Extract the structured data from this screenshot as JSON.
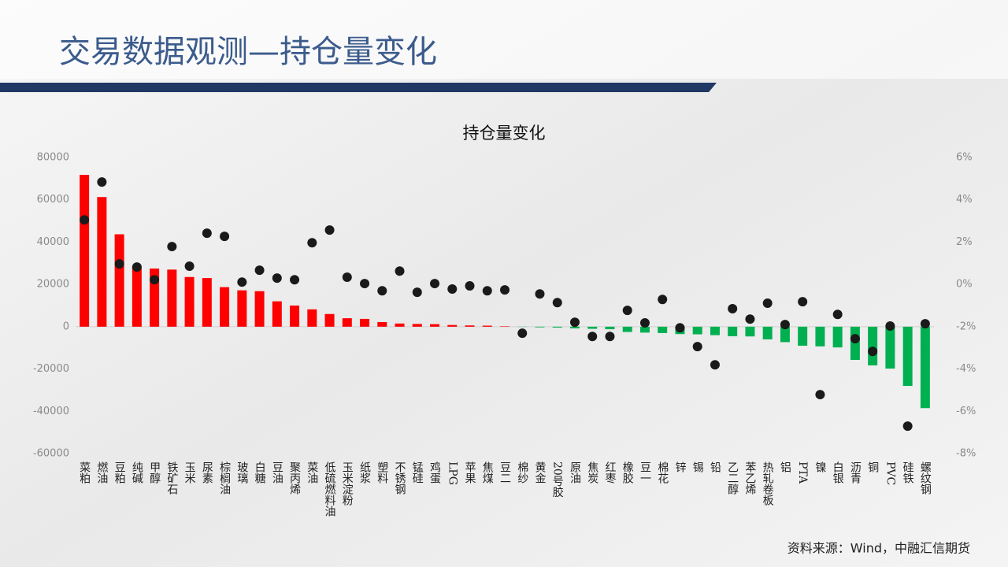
{
  "header": {
    "title": "交易数据观测—持仓量变化"
  },
  "chart_data": {
    "type": "combo",
    "title": "持仓量变化",
    "categories": [
      "菜粕",
      "燃油",
      "豆粕",
      "纯碱",
      "甲醇",
      "铁矿石",
      "玉米",
      "尿素",
      "棕榈油",
      "玻璃",
      "白糖",
      "豆油",
      "聚丙烯",
      "菜油",
      "低硫燃料油",
      "玉米淀粉",
      "纸浆",
      "塑料",
      "不锈钢",
      "锰硅",
      "鸡蛋",
      "LPG",
      "苹果",
      "焦煤",
      "豆二",
      "棉纱",
      "黄金",
      "20号胶",
      "原油",
      "焦炭",
      "红枣",
      "橡胶",
      "豆一",
      "棉花",
      "锌",
      "锡",
      "铅",
      "乙二醇",
      "苯乙烯",
      "热轧卷板",
      "铝",
      "PTA",
      "镍",
      "白银",
      "沥青",
      "铜",
      "PVC",
      "硅铁",
      "螺纹钢"
    ],
    "series": [
      {
        "type": "bar",
        "positive_color": "#ff0000",
        "negative_color": "#00b050",
        "values": [
          71800,
          61300,
          43700,
          28500,
          27500,
          27000,
          23500,
          23000,
          18700,
          17200,
          16800,
          12000,
          10000,
          8200,
          6000,
          4000,
          3700,
          2200,
          1500,
          1300,
          1200,
          800,
          600,
          500,
          200,
          -100,
          -300,
          -400,
          -800,
          -1000,
          -1200,
          -2500,
          -2800,
          -3000,
          -3500,
          -3600,
          -4000,
          -4500,
          -4600,
          -6000,
          -7300,
          -9000,
          -9300,
          -9800,
          -15700,
          -18300,
          -19800,
          -28000,
          -38500
        ]
      },
      {
        "type": "scatter",
        "axis": "y2",
        "color": "#1a1a1a",
        "values": [
          3.05,
          4.84,
          0.97,
          0.82,
          0.22,
          1.79,
          0.86,
          2.42,
          2.27,
          0.11,
          0.67,
          0.3,
          0.22,
          1.97,
          2.57,
          0.34,
          0.04,
          -0.3,
          0.63,
          -0.37,
          0.04,
          -0.22,
          -0.07,
          -0.3,
          -0.26,
          -2.31,
          -0.45,
          -0.86,
          -1.79,
          -2.46,
          -2.46,
          -1.23,
          -1.82,
          -0.71,
          -2.05,
          -2.94,
          -3.8,
          -1.15,
          -1.64,
          -0.89,
          -1.9,
          -0.82,
          -5.21,
          -1.42,
          -2.57,
          -3.17,
          -1.97,
          -6.7,
          -1.86
        ]
      }
    ],
    "ylim": [
      -60000,
      80000
    ],
    "yticks": [
      -60000,
      -40000,
      -20000,
      0,
      20000,
      40000,
      60000,
      80000
    ],
    "y2lim": [
      -8,
      6
    ],
    "y2ticks": [
      {
        "value": -8,
        "label": "-8%"
      },
      {
        "value": -6,
        "label": "-6%"
      },
      {
        "value": -4,
        "label": "-4%"
      },
      {
        "value": -2,
        "label": "-2%"
      },
      {
        "value": 0,
        "label": "0%"
      },
      {
        "value": 2,
        "label": "2%"
      },
      {
        "value": 4,
        "label": "4%"
      },
      {
        "value": 6,
        "label": "6%"
      }
    ],
    "grid": false
  },
  "footer": {
    "source": "资料来源：Wind，中融汇信期货"
  }
}
